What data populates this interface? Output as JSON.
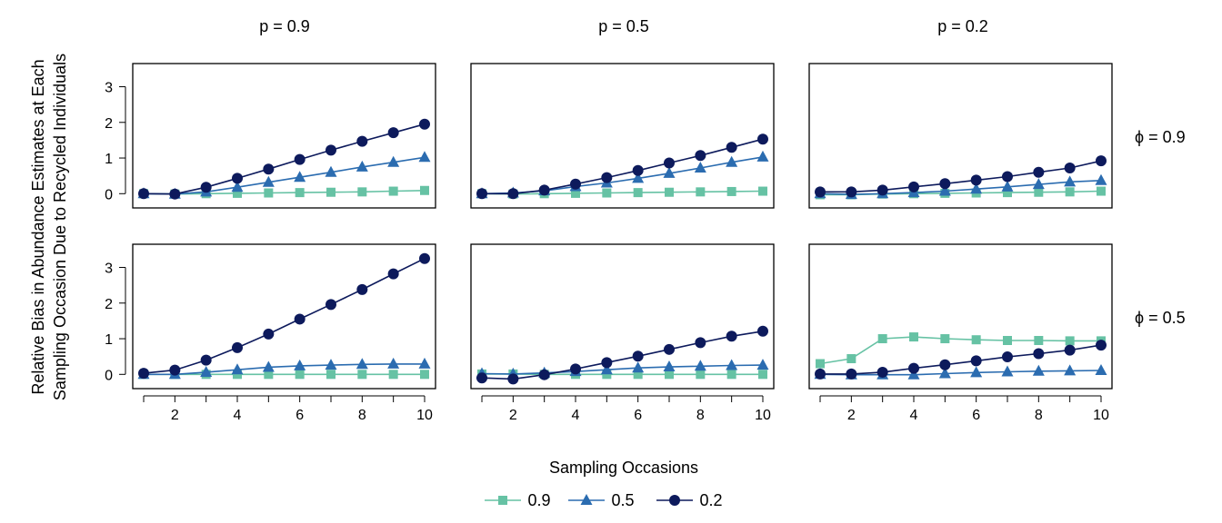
{
  "chart_data": {
    "type": "line",
    "xlabel": "Sampling Occasions",
    "ylabel_lines": [
      "Relative Bias in Abundance Estimates at Each",
      "Sampling Occasion Due to Recycled Individuals"
    ],
    "x": [
      1,
      2,
      3,
      4,
      5,
      6,
      7,
      8,
      9,
      10
    ],
    "x_ticks": [
      2,
      4,
      6,
      8,
      10
    ],
    "y_ticks": [
      0,
      1,
      2,
      3
    ],
    "xlim": [
      0.65,
      10.35
    ],
    "ylim": [
      -0.4,
      3.65
    ],
    "legend_position": "bottom",
    "legend": [
      {
        "label": "0.9",
        "color": "#66c2a4",
        "marker": "square"
      },
      {
        "label": "0.5",
        "color": "#2b6cb0",
        "marker": "triangle"
      },
      {
        "label": "0.2",
        "color": "#0d1a5c",
        "marker": "circle"
      }
    ],
    "col_labels": [
      "p = 0.9",
      "p = 0.5",
      "p = 0.2"
    ],
    "row_labels": [
      "ϕ = 0.9",
      "ϕ = 0.5"
    ],
    "panels": [
      {
        "row": 0,
        "col": 0,
        "series": [
          {
            "name": "0.9",
            "values": [
              0,
              -0.01,
              0,
              0.01,
              0.02,
              0.03,
              0.04,
              0.05,
              0.07,
              0.09
            ]
          },
          {
            "name": "0.5",
            "values": [
              0,
              -0.01,
              0.05,
              0.18,
              0.32,
              0.46,
              0.6,
              0.75,
              0.88,
              1.02
            ]
          },
          {
            "name": "0.2",
            "values": [
              0,
              -0.01,
              0.18,
              0.43,
              0.69,
              0.96,
              1.22,
              1.47,
              1.71,
              1.95
            ]
          }
        ]
      },
      {
        "row": 0,
        "col": 1,
        "series": [
          {
            "name": "0.9",
            "values": [
              0,
              -0.01,
              0,
              0.01,
              0.02,
              0.03,
              0.04,
              0.05,
              0.06,
              0.07
            ]
          },
          {
            "name": "0.5",
            "values": [
              0,
              0.02,
              0.08,
              0.2,
              0.3,
              0.43,
              0.57,
              0.72,
              0.88,
              1.03
            ]
          },
          {
            "name": "0.2",
            "values": [
              0,
              0,
              0.1,
              0.27,
              0.45,
              0.65,
              0.86,
              1.07,
              1.3,
              1.53
            ]
          }
        ]
      },
      {
        "row": 0,
        "col": 2,
        "series": [
          {
            "name": "0.9",
            "values": [
              -0.03,
              -0.03,
              -0.01,
              0,
              0.01,
              0.02,
              0.03,
              0.04,
              0.05,
              0.07
            ]
          },
          {
            "name": "0.5",
            "values": [
              0,
              -0.02,
              0,
              0.03,
              0.07,
              0.13,
              0.19,
              0.26,
              0.33,
              0.37
            ]
          },
          {
            "name": "0.2",
            "values": [
              0.05,
              0.05,
              0.1,
              0.19,
              0.28,
              0.38,
              0.48,
              0.6,
              0.72,
              0.92
            ]
          }
        ]
      },
      {
        "row": 1,
        "col": 0,
        "series": [
          {
            "name": "0.9",
            "values": [
              0,
              0,
              0,
              0,
              0,
              0,
              0,
              0,
              0,
              0
            ]
          },
          {
            "name": "0.5",
            "values": [
              0,
              0,
              0.06,
              0.13,
              0.2,
              0.24,
              0.26,
              0.28,
              0.29,
              0.29
            ]
          },
          {
            "name": "0.2",
            "values": [
              0.03,
              0.12,
              0.4,
              0.75,
              1.13,
              1.55,
              1.96,
              2.38,
              2.82,
              3.25
            ]
          }
        ]
      },
      {
        "row": 1,
        "col": 1,
        "series": [
          {
            "name": "0.9",
            "values": [
              0.01,
              0.01,
              0,
              0,
              0,
              0,
              0,
              0,
              0,
              0
            ]
          },
          {
            "name": "0.5",
            "values": [
              0.02,
              0.01,
              0.04,
              0.08,
              0.13,
              0.18,
              0.21,
              0.23,
              0.25,
              0.26
            ]
          },
          {
            "name": "0.2",
            "values": [
              -0.1,
              -0.13,
              -0.01,
              0.15,
              0.33,
              0.51,
              0.7,
              0.89,
              1.07,
              1.21
            ]
          }
        ]
      },
      {
        "row": 1,
        "col": 2,
        "series": [
          {
            "name": "0.9",
            "values": [
              0.3,
              0.44,
              1.0,
              1.05,
              1.0,
              0.97,
              0.95,
              0.95,
              0.94,
              0.94
            ]
          },
          {
            "name": "0.5",
            "values": [
              0,
              -0.01,
              -0.01,
              -0.01,
              0.02,
              0.05,
              0.07,
              0.09,
              0.1,
              0.11
            ]
          },
          {
            "name": "0.2",
            "values": [
              0.01,
              0.01,
              0.06,
              0.17,
              0.27,
              0.38,
              0.49,
              0.58,
              0.68,
              0.82
            ]
          }
        ]
      }
    ]
  }
}
